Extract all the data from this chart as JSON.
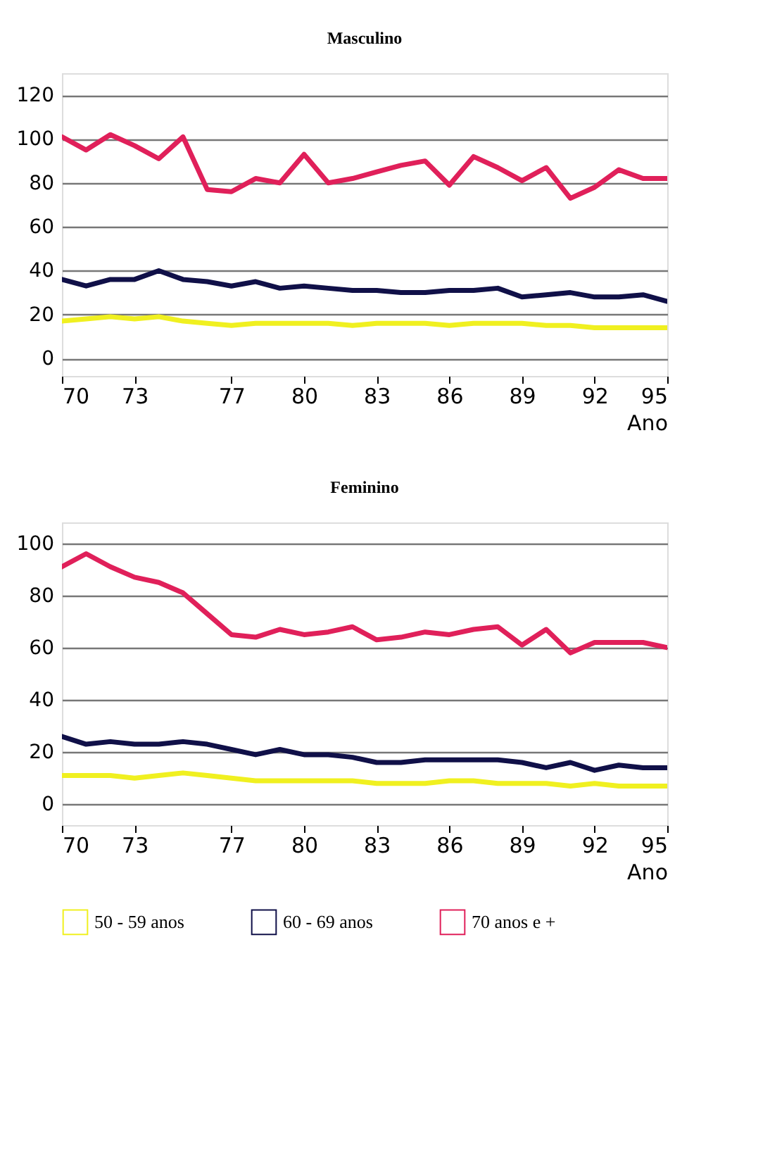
{
  "chart_data": [
    {
      "type": "line",
      "title": "Masculino",
      "xlabel": "Ano",
      "x": [
        70,
        71,
        72,
        73,
        74,
        75,
        76,
        77,
        78,
        79,
        80,
        81,
        82,
        83,
        84,
        85,
        86,
        87,
        88,
        89,
        90,
        91,
        92,
        93,
        94,
        95
      ],
      "xlim": [
        70,
        95
      ],
      "xticks": [
        70,
        73,
        77,
        80,
        83,
        86,
        89,
        92,
        95
      ],
      "ylim": [
        -8,
        130
      ],
      "yticks": [
        0,
        20,
        40,
        60,
        80,
        100,
        120
      ],
      "grid": "y",
      "legend": false,
      "line_style": "solid",
      "marker": "none",
      "series": [
        {
          "color": "#f0f020",
          "values": [
            17,
            18,
            19,
            18,
            19,
            17,
            16,
            15,
            16,
            16,
            16,
            16,
            15,
            16,
            16,
            16,
            15,
            16,
            16,
            16,
            15,
            15,
            14,
            14,
            14,
            14
          ]
        },
        {
          "color": "#101048",
          "values": [
            36,
            33,
            36,
            36,
            40,
            36,
            35,
            33,
            35,
            32,
            33,
            32,
            31,
            31,
            30,
            30,
            31,
            31,
            32,
            28,
            29,
            30,
            28,
            28,
            29,
            26
          ]
        },
        {
          "color": "#e0205a",
          "values": [
            101,
            95,
            102,
            97,
            91,
            101,
            77,
            76,
            82,
            80,
            93,
            80,
            82,
            85,
            88,
            90,
            79,
            92,
            87,
            81,
            87,
            73,
            78,
            86,
            82,
            82
          ]
        }
      ]
    },
    {
      "type": "line",
      "title": "Feminino",
      "xlabel": "Ano",
      "x": [
        70,
        71,
        72,
        73,
        74,
        75,
        76,
        77,
        78,
        79,
        80,
        81,
        82,
        83,
        84,
        85,
        86,
        87,
        88,
        89,
        90,
        91,
        92,
        93,
        94,
        95
      ],
      "xlim": [
        70,
        95
      ],
      "xticks": [
        70,
        73,
        77,
        80,
        83,
        86,
        89,
        92,
        95
      ],
      "ylim": [
        -8,
        108
      ],
      "yticks": [
        0,
        20,
        40,
        60,
        80,
        100
      ],
      "grid": "y",
      "legend": "bottom",
      "line_style": "solid",
      "marker": "none",
      "series": [
        {
          "name": "50 - 59 anos",
          "color": "#f0f020",
          "values": [
            11,
            11,
            11,
            10,
            11,
            12,
            11,
            10,
            9,
            9,
            9,
            9,
            9,
            8,
            8,
            8,
            9,
            9,
            8,
            8,
            8,
            7,
            8,
            7,
            7,
            7
          ]
        },
        {
          "name": "60 - 69 anos",
          "color": "#101048",
          "values": [
            26,
            23,
            24,
            23,
            23,
            24,
            23,
            21,
            19,
            21,
            19,
            19,
            18,
            16,
            16,
            17,
            17,
            17,
            17,
            16,
            14,
            16,
            13,
            15,
            14,
            14
          ]
        },
        {
          "name": "70 anos e +",
          "color": "#e0205a",
          "values": [
            91,
            96,
            91,
            87,
            85,
            81,
            73,
            65,
            64,
            67,
            65,
            66,
            68,
            63,
            64,
            66,
            65,
            67,
            68,
            61,
            67,
            58,
            62,
            62,
            62,
            60
          ]
        }
      ]
    }
  ]
}
